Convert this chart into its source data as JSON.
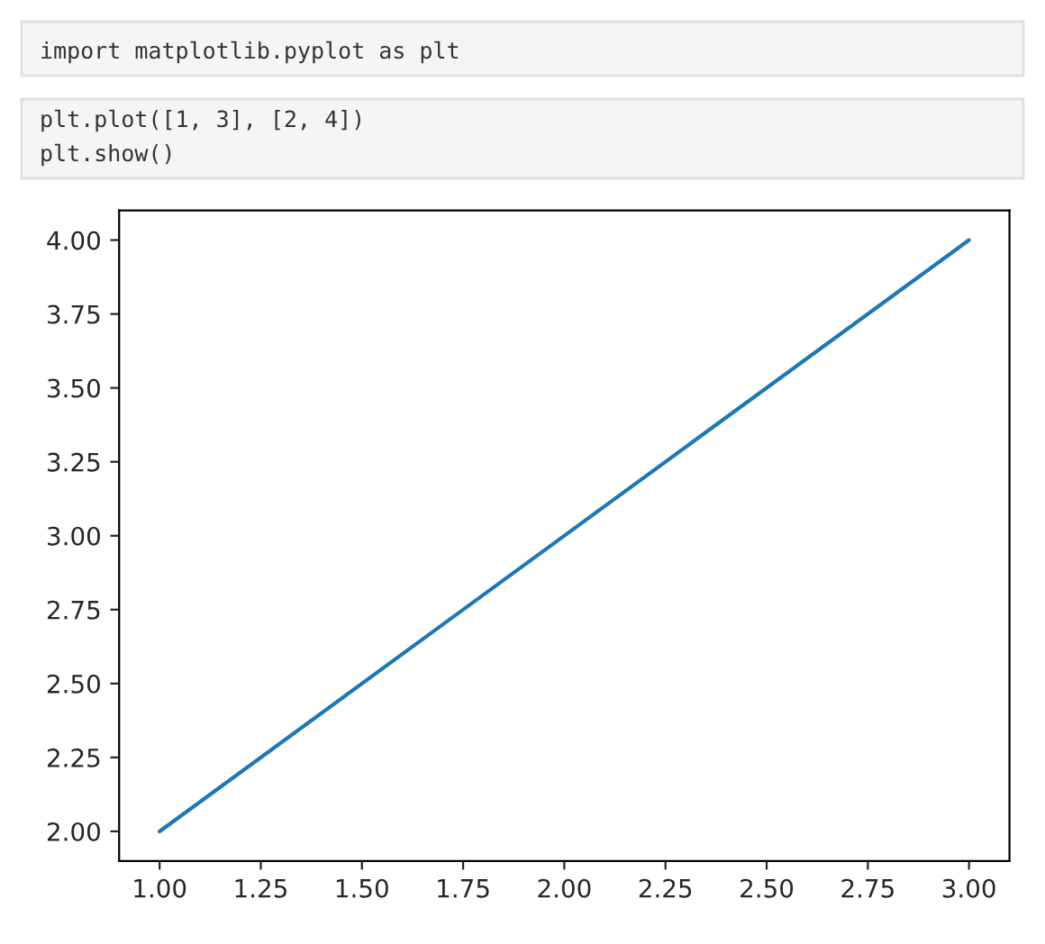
{
  "chart_data": {
    "type": "line",
    "annotations": [
      "import matplotlib.pyplot as plt",
      "plt.plot([1, 3], [2, 4])",
      "plt.show()"
    ],
    "series": [
      {
        "color": "#1f77b4",
        "x": [
          1,
          3
        ],
        "values": [
          2,
          4
        ]
      }
    ],
    "xlim": [
      0.9,
      3.1
    ],
    "ylim": [
      1.9,
      4.1
    ],
    "xticks": [
      {
        "value": 1,
        "label": "1.00"
      },
      {
        "value": 1.25,
        "label": "1.25"
      },
      {
        "value": 1.5,
        "label": "1.50"
      },
      {
        "value": 1.75,
        "label": "1.75"
      },
      {
        "value": 2,
        "label": "2.00"
      },
      {
        "value": 2.25,
        "label": "2.25"
      },
      {
        "value": 2.5,
        "label": "2.50"
      },
      {
        "value": 2.75,
        "label": "2.75"
      },
      {
        "value": 3,
        "label": "3.00"
      }
    ],
    "yticks": [
      {
        "value": 2,
        "label": "2.00"
      },
      {
        "value": 2.25,
        "label": "2.25"
      },
      {
        "value": 2.5,
        "label": "2.50"
      },
      {
        "value": 2.75,
        "label": "2.75"
      },
      {
        "value": 3,
        "label": "3.00"
      },
      {
        "value": 3.25,
        "label": "3.25"
      },
      {
        "value": 3.5,
        "label": "3.50"
      },
      {
        "value": 3.75,
        "label": "3.75"
      },
      {
        "value": 4,
        "label": "4.00"
      }
    ],
    "grid": false,
    "marker": "none",
    "line_style": "solid"
  }
}
